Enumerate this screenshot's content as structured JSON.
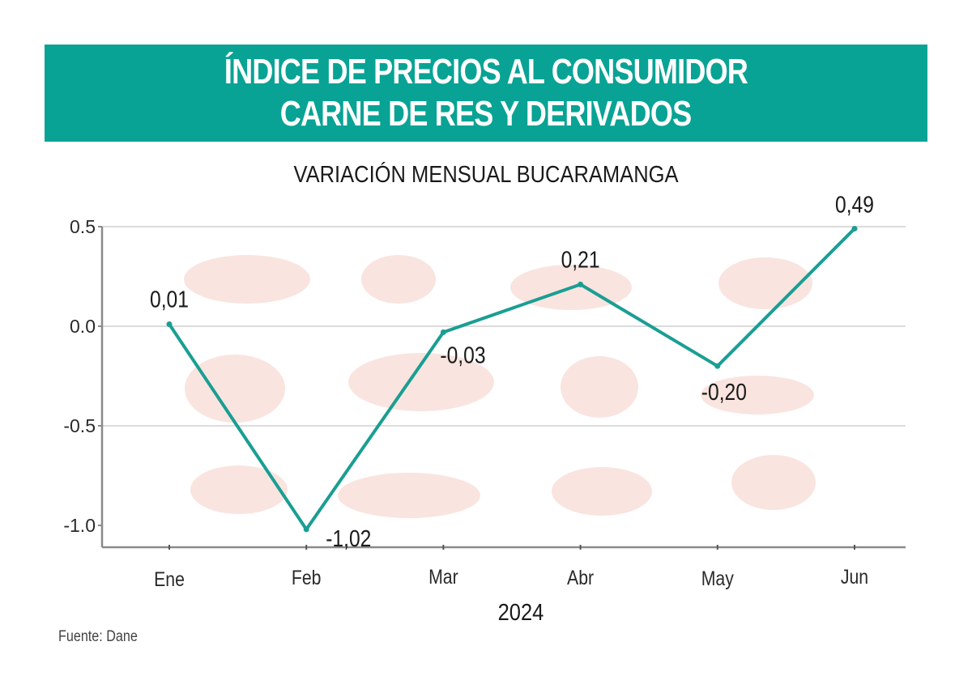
{
  "header": {
    "title_line1": "ÍNDICE DE PRECIOS AL CONSUMIDOR",
    "title_line2": "CARNE DE RES Y DERIVADOS"
  },
  "colors": {
    "header_bg": "#08a394",
    "line": "#1a9e93",
    "grid": "#dcdcdc",
    "axis": "#8a8a8a",
    "illustration": "#f6d9d2"
  },
  "source": "Fuente: Dane",
  "chart_data": {
    "type": "line",
    "title": "ÍNDICE DE PRECIOS AL CONSUMIDOR CARNE DE RES Y DERIVADOS",
    "subtitle": "VARIACIÓN MENSUAL BUCARAMANGA",
    "xlabel": "2024",
    "ylabel": "",
    "categories": [
      "Ene",
      "Feb",
      "Mar",
      "Abr",
      "May",
      "Jun"
    ],
    "series": [
      {
        "name": "Variación mensual",
        "values": [
          0.01,
          -1.02,
          -0.03,
          0.21,
          -0.2,
          0.49
        ],
        "labels": [
          "0,01",
          "-1,02",
          "-0,03",
          "0,21",
          "-0,20",
          "0,49"
        ]
      }
    ],
    "yticks": [
      0.5,
      0.0,
      -0.5,
      -1.0
    ],
    "ytick_labels": [
      "0.5",
      "0.0",
      "-0.5",
      "-1.0"
    ],
    "ylim": [
      -1.11,
      0.5
    ],
    "grid": true,
    "legend": "none"
  }
}
